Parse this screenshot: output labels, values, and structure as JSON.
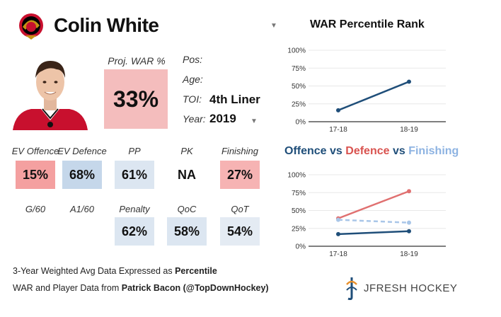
{
  "player": {
    "name": "Colin White",
    "proj_war_label": "Proj. WAR %",
    "proj_war_value": "33%",
    "info": {
      "pos_label": "Pos:",
      "age_label": "Age:",
      "toi_label": "TOI:",
      "toi_value": "4th Liner",
      "year_label": "Year:",
      "year_value": "2019"
    }
  },
  "stats": [
    {
      "label": "EV Offence",
      "value": "15%",
      "color": "#f4a0a0"
    },
    {
      "label": "EV Defence",
      "value": "68%",
      "color": "#c5d7ea"
    },
    {
      "label": "PP",
      "value": "61%",
      "color": "#dce6f1"
    },
    {
      "label": "PK",
      "value": "NA",
      "color": "#ffffff"
    },
    {
      "label": "Finishing",
      "value": "27%",
      "color": "#f6b3b3"
    },
    {
      "label": "G/60",
      "value": "",
      "color": "#ffffff"
    },
    {
      "label": "A1/60",
      "value": "",
      "color": "#ffffff"
    },
    {
      "label": "Penalty",
      "value": "62%",
      "color": "#dce6f1"
    },
    {
      "label": "QoC",
      "value": "58%",
      "color": "#dce6f1"
    },
    {
      "label": "QoT",
      "value": "54%",
      "color": "#e4ebf3"
    }
  ],
  "colors": {
    "proj_war_box": "#f4bdbd",
    "offence": "#1f4e79",
    "defence": "#d9534f",
    "finishing": "#8db3e2",
    "war_line": "#1f4e79",
    "axis": "#333333",
    "grid": "#e8e8e8"
  },
  "footer": {
    "line1_prefix": "3-Year Weighted Avg Data Expressed as ",
    "line1_bold": "Percentile",
    "line2_prefix": "WAR and Player Data from ",
    "line2_bold": "Patrick Bacon (@TopDownHockey)"
  },
  "brand": "JFRESH HOCKEY",
  "chart_data": [
    {
      "type": "line",
      "title": "WAR Percentile Rank",
      "x": [
        "17-18",
        "18-19"
      ],
      "ylim": [
        0,
        100
      ],
      "yticks": [
        "0%",
        "25%",
        "50%",
        "75%",
        "100%"
      ],
      "series": [
        {
          "values": [
            16,
            56
          ],
          "color": "#1f4e79"
        }
      ]
    },
    {
      "type": "line",
      "title_parts": [
        {
          "text": "Offence",
          "color": "#1f4e79"
        },
        {
          "text": " vs ",
          "color": "#1f4e79"
        },
        {
          "text": "Defence",
          "color": "#d9534f"
        },
        {
          "text": " vs ",
          "color": "#1f4e79"
        },
        {
          "text": "Finishing",
          "color": "#8db3e2"
        }
      ],
      "x": [
        "17-18",
        "18-19"
      ],
      "ylim": [
        0,
        100
      ],
      "yticks": [
        "0%",
        "25%",
        "50%",
        "75%",
        "100%"
      ],
      "series": [
        {
          "name": "Offence",
          "values": [
            17,
            21
          ],
          "color": "#1f4e79",
          "dash": false
        },
        {
          "name": "Defence",
          "values": [
            39,
            77
          ],
          "color": "#e07070",
          "dash": false
        },
        {
          "name": "Finishing",
          "values": [
            37,
            33
          ],
          "color": "#a9c6e8",
          "dash": true
        }
      ]
    }
  ]
}
